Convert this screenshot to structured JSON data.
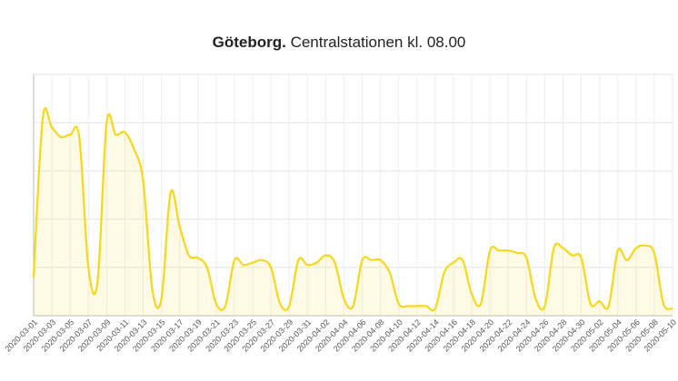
{
  "chart_data": {
    "type": "line",
    "title": "Göteborg.",
    "subtitle": "Centralstationen kl. 08.00",
    "categories": [
      "2020-03-01",
      null,
      "2020-03-03",
      null,
      "2020-03-05",
      null,
      "2020-03-07",
      null,
      "2020-03-09",
      null,
      "2020-03-11",
      null,
      "2020-03-13",
      null,
      "2020-03-15",
      null,
      "2020-03-17",
      null,
      "2020-03-19",
      null,
      "2020-03-21",
      null,
      "2020-03-23",
      null,
      "2020-03-25",
      null,
      "2020-03-27",
      null,
      "2020-03-29",
      null,
      "2020-03-31",
      null,
      "2020-04-02",
      null,
      "2020-04-04",
      null,
      "2020-04-06",
      null,
      "2020-04-08",
      null,
      "2020-04-10",
      null,
      "2020-04-12",
      null,
      "2020-04-14",
      null,
      "2020-04-16",
      null,
      "2020-04-18",
      null,
      "2020-04-20",
      null,
      "2020-04-22",
      null,
      "2020-04-24",
      null,
      "2020-04-26",
      null,
      "2020-04-28",
      null,
      "2020-04-30",
      null,
      "2020-05-02",
      null,
      "2020-05-04",
      null,
      "2020-05-06",
      null,
      "2020-05-08",
      null,
      "2020-05-10"
    ],
    "series": [
      {
        "name": null,
        "color": "#f5d81c",
        "values": [
          16,
          82,
          78,
          74,
          75,
          74,
          20,
          14,
          80,
          75,
          76,
          69,
          56,
          11,
          7,
          51,
          37,
          25,
          24,
          20,
          5,
          4,
          23,
          21,
          22,
          23,
          20,
          5,
          4,
          23,
          21,
          22,
          25,
          22,
          7,
          4,
          23,
          23,
          23,
          18,
          5,
          4,
          4,
          4,
          3,
          18,
          22,
          23,
          9,
          5,
          27,
          27,
          27,
          26,
          24,
          7,
          4,
          28,
          28,
          25,
          24,
          5,
          6,
          4,
          27,
          23,
          28,
          29,
          26,
          5,
          3
        ]
      }
    ],
    "ylim": [
      0,
      100
    ],
    "yticks": [
      0,
      20,
      40,
      60,
      80,
      100
    ],
    "grid": true
  }
}
